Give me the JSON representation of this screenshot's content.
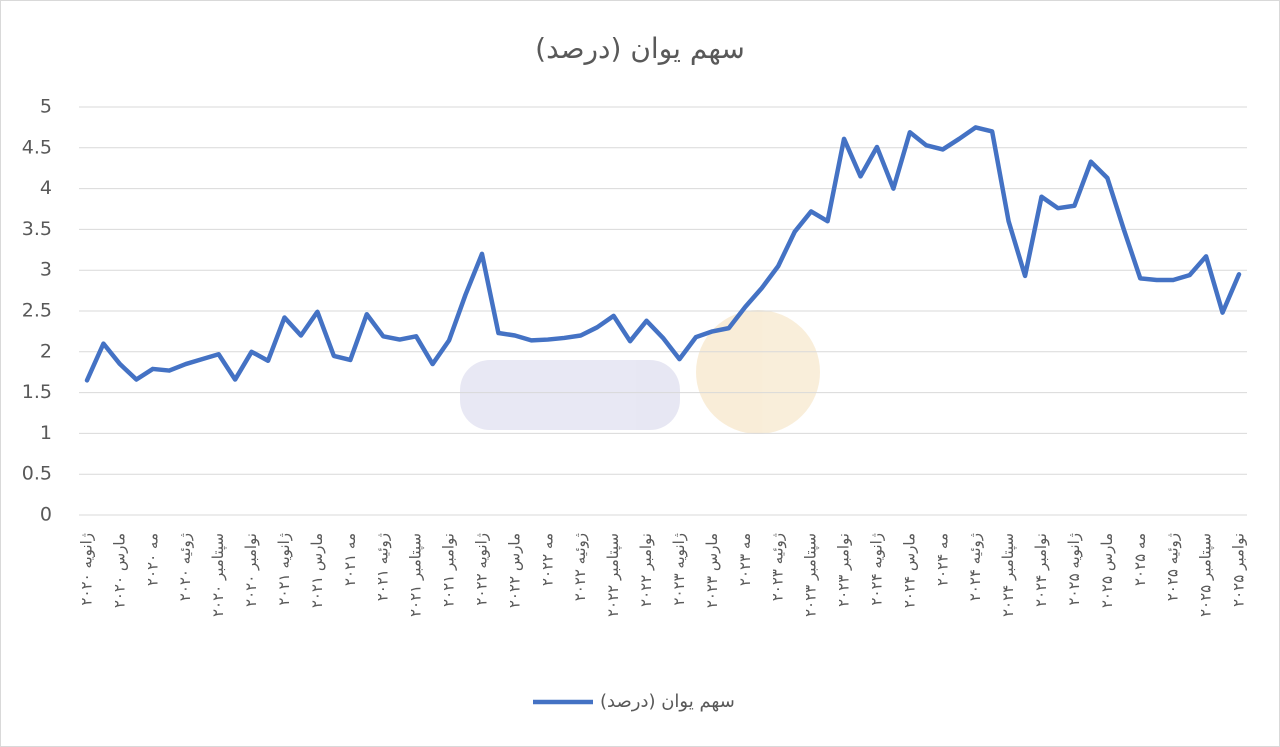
{
  "chart_data": {
    "type": "line",
    "title": "سهم یوان (درصد)",
    "categories": [
      "ژانویه ۲۰۲۰",
      null,
      "مارس ۲۰۲۰",
      null,
      "مه ۲۰۲۰",
      null,
      "ژوئیه ۲۰۲۰",
      null,
      "سپتامبر ۲۰۲۰",
      null,
      "نوامبر ۲۰۲۰",
      null,
      "ژانویه ۲۰۲۱",
      null,
      "مارس ۲۰۲۱",
      null,
      "مه ۲۰۲۱",
      null,
      "ژوئیه ۲۰۲۱",
      null,
      "سپتامبر ۲۰۲۱",
      null,
      "نوامبر ۲۰۲۱",
      null,
      "ژانویه ۲۰۲۲",
      null,
      "مارس ۲۰۲۲",
      null,
      "مه ۲۰۲۲",
      null,
      "ژوئیه ۲۰۲۲",
      null,
      "سپتامبر ۲۰۲۲",
      null,
      "نوامبر ۲۰۲۲",
      null,
      "ژانویه ۲۰۲۳",
      null,
      "مارس ۲۰۲۳",
      null,
      "مه ۲۰۲۳",
      null,
      "ژوئیه ۲۰۲۳",
      null,
      "سپتامبر ۲۰۲۳",
      null,
      "نوامبر ۲۰۲۳",
      null,
      "ژانویه ۲۰۲۴",
      null,
      "مارس ۲۰۲۴",
      null,
      "مه ۲۰۲۴",
      null,
      "ژوئیه ۲۰۲۴",
      null,
      "سپتامبر ۲۰۲۴",
      null,
      "نوامبر ۲۰۲۴",
      null,
      "ژانویه ۲۰۲۵",
      null,
      "مارس ۲۰۲۵",
      null,
      "مه ۲۰۲۵",
      null,
      "ژوئیه ۲۰۲۵",
      null,
      "سپتامبر ۲۰۲۵",
      null,
      "نوامبر ۲۰۲۵"
    ],
    "series": [
      {
        "name": "سهم یوان (درصد)",
        "color": "#4472c4",
        "values": [
          1.65,
          2.1,
          1.85,
          1.66,
          1.79,
          1.77,
          1.85,
          1.91,
          1.97,
          1.66,
          2.0,
          1.89,
          2.42,
          2.2,
          2.49,
          1.95,
          1.9,
          2.46,
          2.19,
          2.15,
          2.19,
          1.85,
          2.14,
          2.7,
          3.2,
          2.23,
          2.2,
          2.14,
          2.15,
          2.17,
          2.2,
          2.3,
          2.44,
          2.13,
          2.38,
          2.17,
          1.91,
          2.18,
          2.25,
          2.29,
          2.55,
          2.78,
          3.05,
          3.47,
          3.72,
          3.6,
          4.61,
          4.15,
          4.51,
          4.0,
          4.69,
          4.53,
          4.48,
          4.61,
          4.75,
          4.7,
          3.6,
          2.93,
          3.9,
          3.76,
          3.79,
          4.33,
          4.13,
          3.5,
          2.9,
          2.88,
          2.88,
          2.94,
          3.17,
          2.48,
          2.95
        ]
      }
    ],
    "ylim": [
      0,
      5
    ],
    "yticks": [
      0,
      0.5,
      1,
      1.5,
      2,
      2.5,
      3,
      3.5,
      4,
      4.5,
      5
    ],
    "grid": true,
    "legend": "bottom"
  }
}
